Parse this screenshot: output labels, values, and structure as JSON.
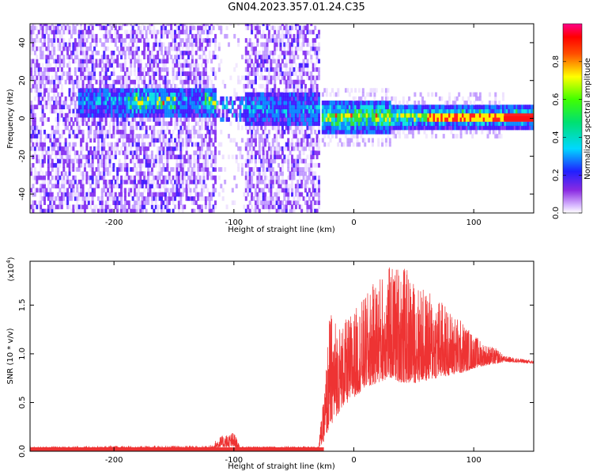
{
  "title": "GN04.2023.357.01.24.C35",
  "chart_data": [
    {
      "type": "heatmap",
      "title": "GN04.2023.357.01.24.C35",
      "xlabel": "Height of straight line (km)",
      "ylabel": "Frequency (Hz)",
      "xlim": [
        -270,
        150
      ],
      "ylim": [
        -50,
        50
      ],
      "x_ticks": [
        -200,
        -100,
        0,
        100
      ],
      "x_tick_labels": [
        "-200",
        "-100",
        "0",
        "100"
      ],
      "y_ticks": [
        -40,
        -20,
        0,
        20,
        40
      ],
      "y_tick_labels": [
        "-40",
        "-20",
        "0",
        "20",
        "40"
      ],
      "colorbar": {
        "label": "Normalized spectral amplitude",
        "range": [
          0,
          1
        ],
        "ticks": [
          0.0,
          0.2,
          0.4,
          0.6,
          0.8
        ],
        "tick_labels": [
          "0.0",
          "0.2",
          "0.4",
          "0.6",
          "0.8"
        ],
        "colormap": "rainbow (white-violet-blue-cyan-green-yellow-red-magenta)"
      },
      "features": {
        "noise_band_x": [
          -270,
          -30
        ],
        "gap_x": [
          -115,
          -92
        ],
        "low_freq_band_center_hz": [
          8,
          3
        ],
        "strong_band_x": [
          -28,
          150
        ],
        "strong_band_center_hz": 0
      },
      "grid": false
    },
    {
      "type": "line",
      "xlabel": "Height of straight line (km)",
      "ylabel": "SNR (10 * v/v)",
      "y_multiplier_label": "(x10",
      "y_multiplier_exp": "4",
      "y_multiplier_close": ")",
      "xlim": [
        -270,
        150
      ],
      "ylim": [
        0,
        1.95
      ],
      "x_ticks": [
        -200,
        -100,
        0,
        100
      ],
      "x_tick_labels": [
        "-200",
        "-100",
        "0",
        "100"
      ],
      "y_ticks": [
        0.0,
        0.5,
        1.0,
        1.5
      ],
      "y_tick_labels": [
        "0.0",
        "0.5",
        "1.0",
        "1.5"
      ],
      "color": "#ee3333",
      "envelope": {
        "x": [
          -270,
          -120,
          -112,
          -100,
          -95,
          -30,
          -25,
          -20,
          -10,
          0,
          10,
          20,
          30,
          40,
          50,
          60,
          70,
          80,
          90,
          100,
          110,
          120,
          125,
          150
        ],
        "low": [
          0.0,
          0.0,
          0.04,
          0.04,
          0.02,
          0.02,
          0.1,
          0.25,
          0.45,
          0.55,
          0.65,
          0.7,
          0.75,
          0.7,
          0.7,
          0.72,
          0.75,
          0.78,
          0.8,
          0.85,
          0.88,
          0.9,
          0.92,
          0.9
        ],
        "high": [
          0.05,
          0.06,
          0.15,
          0.2,
          0.05,
          0.05,
          0.55,
          1.45,
          1.3,
          1.45,
          1.6,
          1.8,
          1.9,
          1.95,
          1.75,
          1.65,
          1.6,
          1.45,
          1.35,
          1.2,
          1.1,
          1.05,
          0.98,
          0.93
        ]
      },
      "grid": false
    }
  ]
}
